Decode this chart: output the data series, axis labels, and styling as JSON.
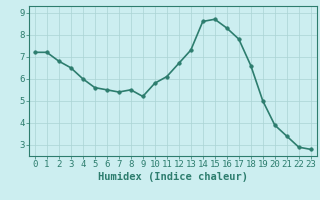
{
  "x": [
    0,
    1,
    2,
    3,
    4,
    5,
    6,
    7,
    8,
    9,
    10,
    11,
    12,
    13,
    14,
    15,
    16,
    17,
    18,
    19,
    20,
    21,
    22,
    23
  ],
  "y": [
    7.2,
    7.2,
    6.8,
    6.5,
    6.0,
    5.6,
    5.5,
    5.4,
    5.5,
    5.2,
    5.8,
    6.1,
    6.7,
    7.3,
    8.6,
    8.7,
    8.3,
    7.8,
    6.6,
    5.0,
    3.9,
    3.4,
    2.9,
    2.8
  ],
  "line_color": "#2d7d6e",
  "marker": "o",
  "markersize": 2.5,
  "linewidth": 1.2,
  "bg_color": "#cceef0",
  "grid_color": "#aad4d4",
  "xlabel": "Humidex (Indice chaleur)",
  "xlim": [
    -0.5,
    23.5
  ],
  "ylim": [
    2.5,
    9.3
  ],
  "yticks": [
    3,
    4,
    5,
    6,
    7,
    8,
    9
  ],
  "xticks": [
    0,
    1,
    2,
    3,
    4,
    5,
    6,
    7,
    8,
    9,
    10,
    11,
    12,
    13,
    14,
    15,
    16,
    17,
    18,
    19,
    20,
    21,
    22,
    23
  ],
  "tick_color": "#2d7d6e",
  "label_color": "#2d7d6e",
  "axis_color": "#2d7d6e",
  "xlabel_fontsize": 7.5,
  "tick_fontsize": 6.5
}
